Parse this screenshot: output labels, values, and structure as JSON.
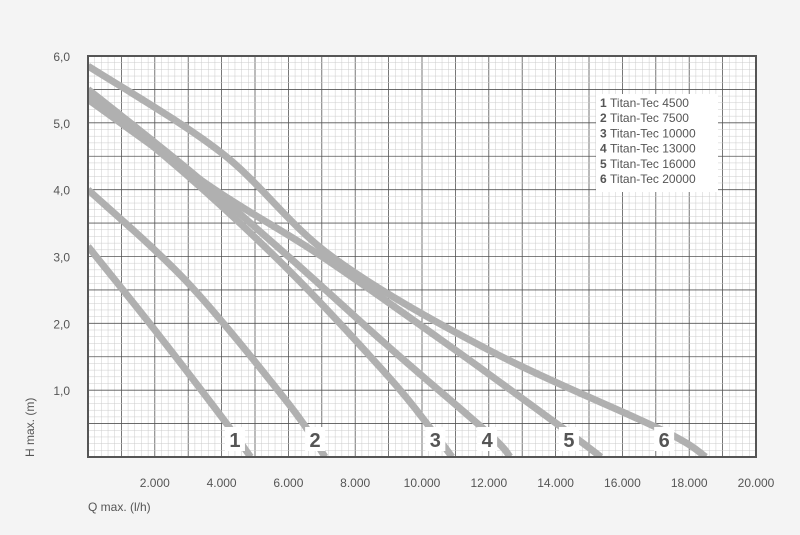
{
  "chart_data": {
    "type": "line",
    "title": "",
    "xlabel": "Q max. (l/h)",
    "ylabel": "H max. (m)",
    "xlim": [
      0,
      20000
    ],
    "ylim": [
      0,
      6
    ],
    "grid": true,
    "legend_position": "top-right",
    "x_ticks": [
      {
        "value": 2000,
        "label": "2.000"
      },
      {
        "value": 4000,
        "label": "4.000"
      },
      {
        "value": 6000,
        "label": "6.000"
      },
      {
        "value": 8000,
        "label": "8.000"
      },
      {
        "value": 10000,
        "label": "10.000"
      },
      {
        "value": 12000,
        "label": "12.000"
      },
      {
        "value": 14000,
        "label": "14.000"
      },
      {
        "value": 16000,
        "label": "16.000"
      },
      {
        "value": 18000,
        "label": "18.000"
      },
      {
        "value": 20000,
        "label": "20.000"
      }
    ],
    "y_ticks": [
      {
        "value": 1,
        "label": "1,0"
      },
      {
        "value": 2,
        "label": "2,0"
      },
      {
        "value": 3,
        "label": "3,0"
      },
      {
        "value": 4,
        "label": "4,0"
      },
      {
        "value": 5,
        "label": "5,0"
      },
      {
        "value": 6,
        "label": "6,0"
      }
    ],
    "series": [
      {
        "number": "1",
        "name": "Titan-Tec 4500",
        "label_x": 4400,
        "points": [
          [
            0,
            3.15
          ],
          [
            2000,
            1.9
          ],
          [
            4000,
            0.6
          ],
          [
            4870,
            0
          ]
        ]
      },
      {
        "number": "2",
        "name": "Titan-Tec 7500",
        "label_x": 6800,
        "points": [
          [
            0,
            4.0
          ],
          [
            3000,
            2.6
          ],
          [
            6000,
            0.8
          ],
          [
            7100,
            0
          ]
        ]
      },
      {
        "number": "3",
        "name": "Titan-Tec 10000",
        "label_x": 10400,
        "points": [
          [
            0,
            5.45
          ],
          [
            3000,
            4.2
          ],
          [
            6000,
            2.8
          ],
          [
            9000,
            1.2
          ],
          [
            10300,
            0.4
          ],
          [
            10900,
            0
          ]
        ]
      },
      {
        "number": "4",
        "name": "Titan-Tec 13000",
        "label_x": 11950,
        "points": [
          [
            0,
            5.5
          ],
          [
            3000,
            4.3
          ],
          [
            6000,
            3.0
          ],
          [
            9000,
            1.65
          ],
          [
            12000,
            0.35
          ],
          [
            12640,
            0
          ]
        ]
      },
      {
        "number": "5",
        "name": "Titan-Tec 16000",
        "label_x": 14400,
        "points": [
          [
            0,
            5.35
          ],
          [
            3800,
            4.0
          ],
          [
            7000,
            3.0
          ],
          [
            11000,
            1.6
          ],
          [
            14300,
            0.4
          ],
          [
            15360,
            0
          ]
        ]
      },
      {
        "number": "6",
        "name": "Titan-Tec 20000",
        "label_x": 17250,
        "points": [
          [
            0,
            5.85
          ],
          [
            4000,
            4.55
          ],
          [
            7300,
            3.0
          ],
          [
            12000,
            1.6
          ],
          [
            17200,
            0.4
          ],
          [
            18500,
            0
          ]
        ]
      }
    ],
    "colors": {
      "line": "#b0b0b0",
      "grid_major": "#555555",
      "grid_minor": "#cccccc",
      "text": "#555555"
    }
  }
}
